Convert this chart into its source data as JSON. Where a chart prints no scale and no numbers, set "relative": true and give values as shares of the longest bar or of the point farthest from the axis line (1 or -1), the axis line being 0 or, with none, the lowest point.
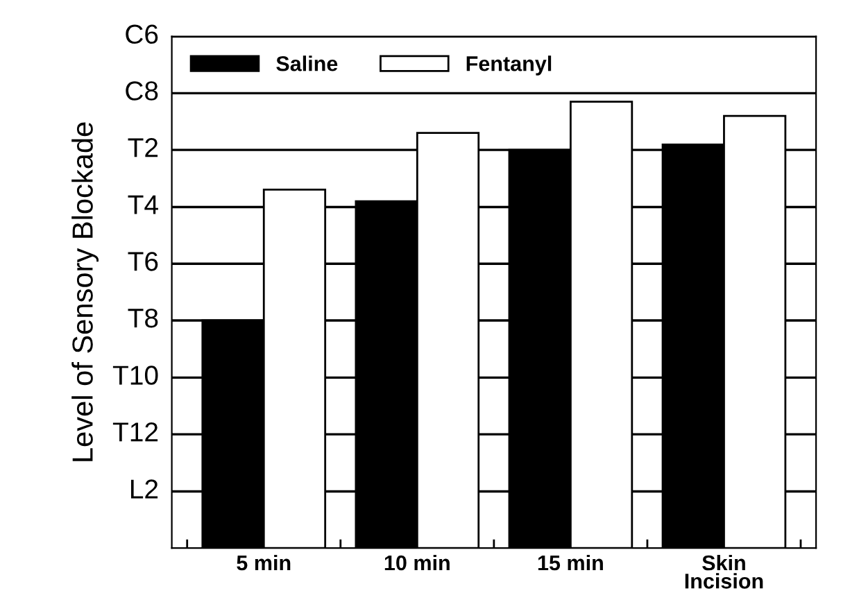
{
  "chart_data": {
    "type": "bar",
    "ylabel": "Level of Sensory Blockade",
    "categories": [
      "5 min",
      "10 min",
      "15 min",
      "Skin\nIncision"
    ],
    "relative": true,
    "series": [
      {
        "name": "Saline",
        "color": "#000000",
        "values": [
          0.51,
          0.777,
          0.892,
          0.904
        ]
      },
      {
        "name": "Fentanyl",
        "color": "#ffffff",
        "values": [
          0.803,
          0.93,
          1,
          0.968
        ]
      }
    ],
    "ref_lines": [
      {
        "axis": "y",
        "value": 0.127,
        "label": "L2"
      },
      {
        "axis": "y",
        "value": 0.255,
        "label": "T12"
      },
      {
        "axis": "y",
        "value": 0.382,
        "label": "T10"
      },
      {
        "axis": "y",
        "value": 0.51,
        "label": "T8"
      },
      {
        "axis": "y",
        "value": 0.637,
        "label": "T6"
      },
      {
        "axis": "y",
        "value": 0.764,
        "label": "T4"
      },
      {
        "axis": "y",
        "value": 0.892,
        "label": "T2"
      },
      {
        "axis": "y",
        "value": 1.019,
        "label": "C8"
      },
      {
        "axis": "y",
        "value": 1.146,
        "label": "C6"
      }
    ],
    "legend": "top left"
  }
}
